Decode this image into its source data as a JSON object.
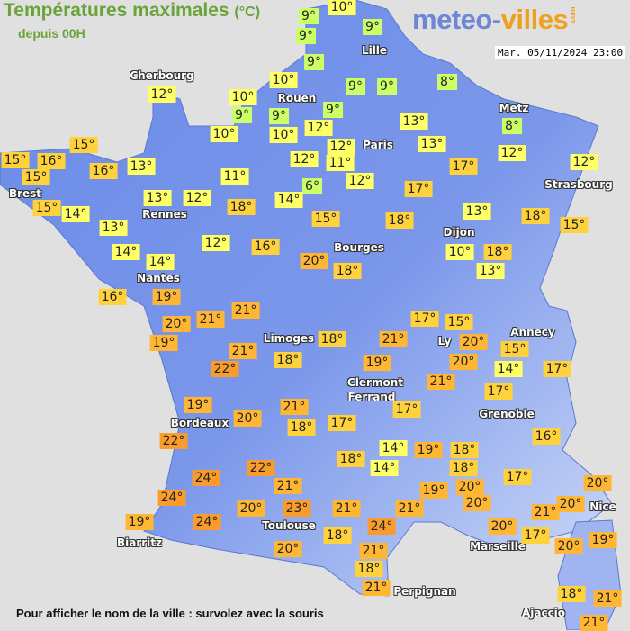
{
  "header": {
    "title": "Températures maximales",
    "unit": "(°C)",
    "subtitle": "depuis 00H"
  },
  "logo": {
    "part1": "meteo-",
    "part2": "villes",
    "suffix": ".com"
  },
  "timestamp": "Mar. 05/11/2024 23:00",
  "footer": "Pour afficher le nom de la ville : survolez avec la souris",
  "colors": {
    "sea": "#e0e0e0",
    "land": "#6f8fe8",
    "le9": "#ccff66",
    "t10_14": "#ffff66",
    "t15_18": "#ffd23c",
    "t19_21": "#ffb633",
    "ge22": "#f99c2c"
  },
  "cities": [
    "Cherbourg",
    "Lille",
    "Rouen",
    "Paris",
    "Metz",
    "Strasbourg",
    "Brest",
    "Rennes",
    "Dijon",
    "Bourges",
    "Nantes",
    "Limoges",
    "Annecy",
    "Ly",
    "Clermont",
    "Ferrand",
    "Grenoble",
    "Bordeaux",
    "Toulouse",
    "Biarritz",
    "Marseille",
    "Nice",
    "Perpignan",
    "Ajaccio"
  ],
  "temperatures": [
    "9°",
    "10°",
    "9°",
    "9°",
    "9°",
    "10°",
    "10°",
    "9°",
    "9°",
    "10°",
    "10°",
    "9°",
    "9°",
    "8°",
    "12°",
    "9°",
    "12°",
    "12°",
    "11°",
    "12°",
    "6°",
    "13°",
    "13°",
    "8°",
    "12°",
    "17°",
    "12°",
    "17°",
    "12°",
    "15°",
    "15°",
    "16°",
    "15°",
    "16°",
    "13°",
    "15°",
    "14°",
    "13°",
    "13°",
    "12°",
    "11°",
    "18°",
    "14°",
    "15°",
    "18°",
    "13°",
    "18°",
    "15°",
    "12°",
    "16°",
    "14°",
    "14°",
    "20°",
    "18°",
    "10°",
    "18°",
    "13°",
    "16°",
    "19°",
    "20°",
    "21°",
    "21°",
    "19°",
    "21°",
    "22°",
    "18°",
    "18°",
    "17°",
    "15°",
    "21°",
    "20°",
    "20°",
    "15°",
    "14°",
    "17°",
    "19°",
    "21°",
    "17°",
    "19°",
    "20°",
    "21°",
    "18°",
    "17°",
    "17°",
    "16°",
    "22°",
    "22°",
    "24°",
    "24°",
    "21°",
    "18°",
    "14°",
    "14°",
    "19°",
    "18°",
    "18°",
    "17°",
    "19°",
    "20°",
    "20°",
    "20°",
    "23°",
    "21°",
    "21°",
    "20°",
    "20°",
    "20°",
    "21°",
    "19°",
    "24°",
    "24°",
    "18°",
    "17°",
    "20°",
    "19°",
    "20°",
    "21°",
    "18°",
    "21°",
    "18°",
    "21°",
    "21°",
    "21°"
  ]
}
